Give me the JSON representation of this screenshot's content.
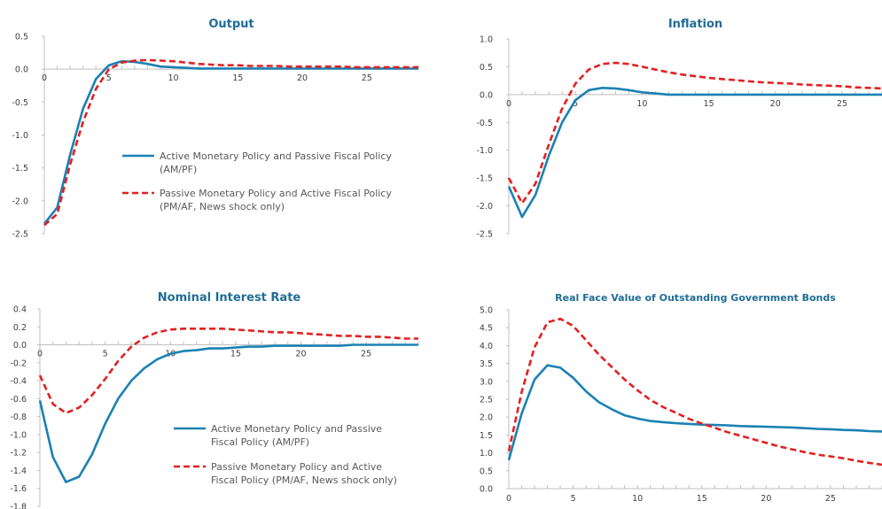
{
  "colors": {
    "active": "#1b81b3",
    "passive": "#e32020",
    "title": "#1f6d96",
    "axis": "#bfbfbf",
    "text": "#404040"
  },
  "chart_data": [
    {
      "type": "line",
      "title": "Output",
      "xlabel": "",
      "ylabel": "",
      "ylim": [
        -2.5,
        0.5
      ],
      "yticks": [
        "0.5",
        "0.0",
        "-0.5",
        "-1.0",
        "-1.5",
        "-2.0",
        "-2.5"
      ],
      "yticks_num": [
        0.5,
        0.0,
        -0.5,
        -1.0,
        -1.5,
        -2.0,
        -2.5
      ],
      "xlim": [
        0,
        29
      ],
      "xticks": [
        "0",
        "5",
        "10",
        "15",
        "20",
        "25"
      ],
      "xticks_num": [
        0,
        5,
        10,
        15,
        20,
        25
      ],
      "x_axis_at": 0,
      "x": [
        0,
        1,
        2,
        3,
        4,
        5,
        6,
        7,
        8,
        9,
        10,
        11,
        12,
        13,
        14,
        15,
        16,
        17,
        18,
        19,
        20,
        21,
        22,
        23,
        24,
        25,
        26,
        27,
        28,
        29
      ],
      "legend": {
        "position": "lower-right",
        "items": [
          {
            "lines": [
              "Active Monetary Policy and Passive Fiscal Policy",
              "(AM/PF)"
            ],
            "series": 0
          },
          {
            "lines": [
              "Passive Monetary Policy and Active Fiscal Policy",
              "(PM/AF, News shock only)"
            ],
            "series": 1
          }
        ]
      },
      "series": [
        {
          "name": "Active Monetary Policy and Passive Fiscal Policy (AM/PF)",
          "style": "solid",
          "values": [
            -2.35,
            -2.1,
            -1.3,
            -0.6,
            -0.15,
            0.06,
            0.12,
            0.11,
            0.08,
            0.04,
            0.03,
            0.02,
            0.01,
            0.01,
            0.01,
            0.01,
            0.01,
            0.01,
            0.01,
            0.01,
            0.01,
            0.01,
            0.01,
            0.01,
            0.01,
            0.01,
            0.01,
            0.01,
            0.01,
            0.01
          ]
        },
        {
          "name": "Passive Monetary Policy and Active Fiscal Policy (PM/AF, News shock only)",
          "style": "dashed",
          "values": [
            -2.37,
            -2.2,
            -1.45,
            -0.8,
            -0.3,
            0.0,
            0.1,
            0.13,
            0.14,
            0.13,
            0.12,
            0.1,
            0.08,
            0.07,
            0.06,
            0.06,
            0.05,
            0.05,
            0.05,
            0.04,
            0.04,
            0.04,
            0.04,
            0.04,
            0.03,
            0.03,
            0.03,
            0.03,
            0.03,
            0.03
          ]
        }
      ]
    },
    {
      "type": "line",
      "title": "Inflation",
      "xlabel": "",
      "ylabel": "",
      "ylim": [
        -2.5,
        1.0
      ],
      "yticks": [
        "1.0",
        "0.5",
        "0.0",
        "-0.5",
        "-1.0",
        "-1.5",
        "-2.0",
        "-2.5"
      ],
      "yticks_num": [
        1.0,
        0.5,
        0.0,
        -0.5,
        -1.0,
        -1.5,
        -2.0,
        -2.5
      ],
      "xlim": [
        0,
        28
      ],
      "xticks": [
        "0",
        "5",
        "10",
        "15",
        "20",
        "25"
      ],
      "xticks_num": [
        0,
        5,
        10,
        15,
        20,
        25
      ],
      "x_axis_at": 0,
      "x": [
        0,
        1,
        2,
        3,
        4,
        5,
        6,
        7,
        8,
        9,
        10,
        11,
        12,
        13,
        14,
        15,
        16,
        17,
        18,
        19,
        20,
        21,
        22,
        23,
        24,
        25,
        26,
        27,
        28
      ],
      "series": [
        {
          "name": "Active Monetary Policy and Passive Fiscal Policy (AM/PF)",
          "style": "solid",
          "values": [
            -1.65,
            -2.2,
            -1.8,
            -1.1,
            -0.5,
            -0.1,
            0.08,
            0.12,
            0.11,
            0.08,
            0.04,
            0.02,
            0.0,
            0.0,
            0.0,
            0.0,
            0.0,
            0.0,
            0.0,
            0.0,
            0.0,
            0.0,
            0.0,
            0.0,
            0.0,
            0.0,
            0.0,
            0.0,
            0.0
          ]
        },
        {
          "name": "Passive Monetary Policy and Active Fiscal Policy (PM/AF, News shock only)",
          "style": "dashed",
          "values": [
            -1.5,
            -1.95,
            -1.6,
            -0.9,
            -0.25,
            0.2,
            0.45,
            0.55,
            0.57,
            0.55,
            0.5,
            0.45,
            0.4,
            0.36,
            0.33,
            0.3,
            0.28,
            0.26,
            0.24,
            0.22,
            0.21,
            0.2,
            0.18,
            0.17,
            0.16,
            0.15,
            0.13,
            0.12,
            0.11
          ]
        }
      ]
    },
    {
      "type": "line",
      "title": "Nominal Interest Rate",
      "xlabel": "",
      "ylabel": "",
      "ylim": [
        -1.8,
        0.4
      ],
      "yticks": [
        "0.4",
        "0.2",
        "0.0",
        "-0.2",
        "-0.4",
        "-0.6",
        "-0.8",
        "-1.0",
        "-1.2",
        "-1.4",
        "-1.6",
        "-1.8"
      ],
      "yticks_num": [
        0.4,
        0.2,
        0.0,
        -0.2,
        -0.4,
        -0.6,
        -0.8,
        -1.0,
        -1.2,
        -1.4,
        -1.6,
        -1.8
      ],
      "xlim": [
        0,
        29
      ],
      "xticks": [
        "0",
        "5",
        "10",
        "15",
        "20",
        "25"
      ],
      "xticks_num": [
        0,
        5,
        10,
        15,
        20,
        25
      ],
      "x_axis_at": 0,
      "x": [
        0,
        1,
        2,
        3,
        4,
        5,
        6,
        7,
        8,
        9,
        10,
        11,
        12,
        13,
        14,
        15,
        16,
        17,
        18,
        19,
        20,
        21,
        22,
        23,
        24,
        25,
        26,
        27,
        28,
        29
      ],
      "legend": {
        "position": "lower-right",
        "items": [
          {
            "lines": [
              "Active Monetary Policy and Passive",
              "Fiscal Policy (AM/PF)"
            ],
            "series": 0
          },
          {
            "lines": [
              "Passive Monetary Policy and Active",
              "Fiscal Policy (PM/AF, News shock only)"
            ],
            "series": 1
          }
        ]
      },
      "series": [
        {
          "name": "Active Monetary Policy and Passive Fiscal Policy (AM/PF)",
          "style": "solid",
          "values": [
            -0.62,
            -1.25,
            -1.53,
            -1.47,
            -1.22,
            -0.88,
            -0.6,
            -0.4,
            -0.26,
            -0.16,
            -0.1,
            -0.07,
            -0.06,
            -0.04,
            -0.04,
            -0.03,
            -0.02,
            -0.02,
            -0.01,
            -0.01,
            -0.01,
            -0.01,
            -0.01,
            -0.01,
            0.0,
            0.0,
            0.0,
            0.0,
            0.0,
            0.0
          ]
        },
        {
          "name": "Passive Monetary Policy and Active Fiscal Policy (PM/AF, News shock only)",
          "style": "dashed",
          "values": [
            -0.34,
            -0.66,
            -0.76,
            -0.7,
            -0.56,
            -0.38,
            -0.18,
            -0.02,
            0.08,
            0.14,
            0.17,
            0.18,
            0.18,
            0.18,
            0.18,
            0.17,
            0.16,
            0.15,
            0.14,
            0.14,
            0.13,
            0.12,
            0.11,
            0.1,
            0.1,
            0.09,
            0.09,
            0.08,
            0.07,
            0.07
          ]
        }
      ]
    },
    {
      "type": "line",
      "title": "Real Face Value of Outstanding Government Bonds",
      "xlabel": "",
      "ylabel": "",
      "ylim": [
        0.0,
        5.0
      ],
      "yticks": [
        "5.0",
        "4.5",
        "4.0",
        "3.5",
        "3.0",
        "2.5",
        "2.0",
        "1.5",
        "1.0",
        "0.5",
        "0.0"
      ],
      "yticks_num": [
        5.0,
        4.5,
        4.0,
        3.5,
        3.0,
        2.5,
        2.0,
        1.5,
        1.0,
        0.5,
        0.0
      ],
      "xlim": [
        0,
        29
      ],
      "xticks": [
        "0",
        "5",
        "10",
        "15",
        "20",
        "25"
      ],
      "xticks_num": [
        0,
        5,
        10,
        15,
        20,
        25
      ],
      "x_axis_at": 0,
      "x": [
        0,
        1,
        2,
        3,
        4,
        5,
        6,
        7,
        8,
        9,
        10,
        11,
        12,
        13,
        14,
        15,
        16,
        17,
        18,
        19,
        20,
        21,
        22,
        23,
        24,
        25,
        26,
        27,
        28,
        29
      ],
      "series": [
        {
          "name": "Active Monetary Policy and Passive Fiscal Policy (AM/PF)",
          "style": "solid",
          "values": [
            0.8,
            2.1,
            3.05,
            3.45,
            3.38,
            3.1,
            2.72,
            2.42,
            2.22,
            2.05,
            1.96,
            1.89,
            1.86,
            1.83,
            1.81,
            1.79,
            1.78,
            1.77,
            1.75,
            1.74,
            1.73,
            1.72,
            1.71,
            1.69,
            1.67,
            1.66,
            1.64,
            1.63,
            1.61,
            1.6
          ]
        },
        {
          "name": "Passive Monetary Policy and Active Fiscal Policy (PM/AF, News shock only)",
          "style": "dashed",
          "values": [
            1.05,
            2.7,
            3.95,
            4.65,
            4.75,
            4.55,
            4.15,
            3.75,
            3.4,
            3.05,
            2.75,
            2.48,
            2.28,
            2.12,
            1.95,
            1.82,
            1.7,
            1.58,
            1.48,
            1.38,
            1.28,
            1.18,
            1.1,
            1.02,
            0.95,
            0.9,
            0.85,
            0.78,
            0.72,
            0.67
          ]
        }
      ]
    }
  ]
}
